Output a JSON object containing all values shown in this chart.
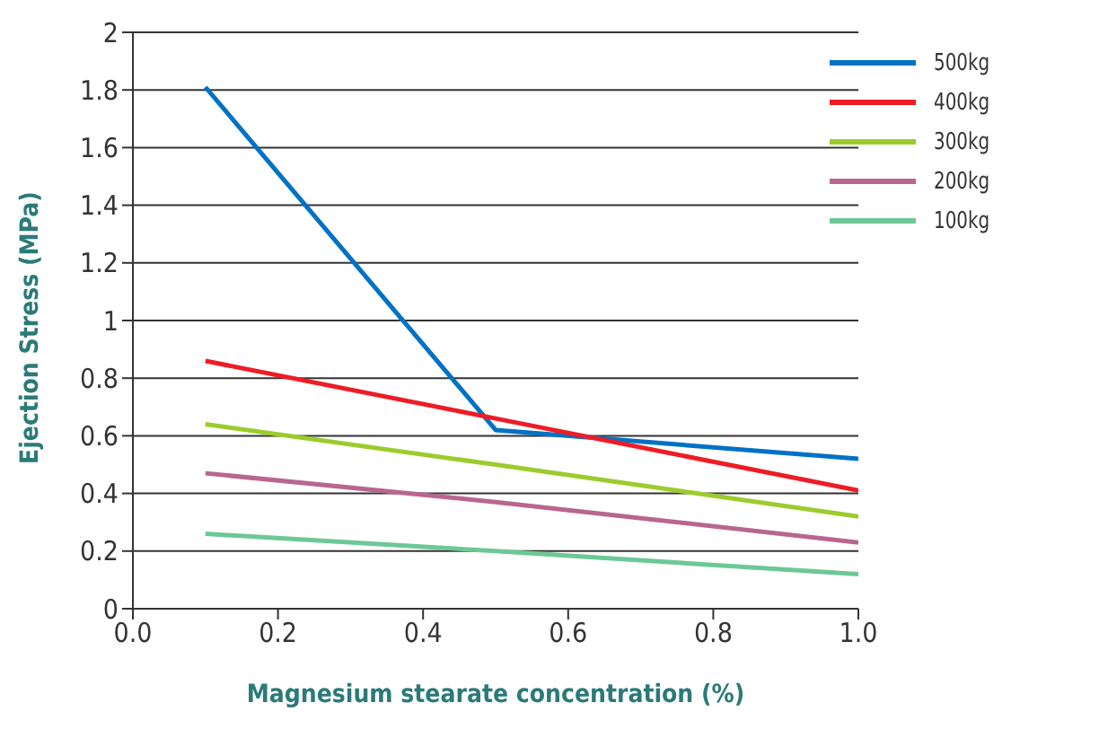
{
  "chart_data": {
    "type": "line",
    "xlabel": "Magnesium stearate concentration (%)",
    "ylabel": "Ejection Stress (MPa)",
    "x": [
      0.1,
      0.5,
      1.0
    ],
    "series": [
      {
        "name": "500kg",
        "color": "#0072c6",
        "values": [
          1.81,
          0.62,
          0.52
        ]
      },
      {
        "name": "400kg",
        "color": "#ee1c25",
        "values": [
          0.86,
          0.66,
          0.41
        ]
      },
      {
        "name": "300kg",
        "color": "#9ccc2c",
        "values": [
          0.64,
          0.5,
          0.32
        ]
      },
      {
        "name": "200kg",
        "color": "#b8668f",
        "values": [
          0.47,
          0.37,
          0.23
        ]
      },
      {
        "name": "100kg",
        "color": "#6cc896",
        "values": [
          0.26,
          0.2,
          0.12
        ]
      }
    ],
    "xlim": [
      0,
      1
    ],
    "xticks": [
      {
        "value": 0,
        "label": "0.0"
      },
      {
        "value": 0.2,
        "label": "0.2"
      },
      {
        "value": 0.4,
        "label": "0.4"
      },
      {
        "value": 0.6,
        "label": "0.6"
      },
      {
        "value": 0.8,
        "label": "0.8"
      },
      {
        "value": 1,
        "label": "1.0"
      }
    ],
    "ylim": [
      0,
      2
    ],
    "yticks": [
      0,
      0.2,
      0.4,
      0.6,
      0.8,
      1,
      1.2,
      1.4,
      1.6,
      1.8,
      2
    ],
    "grid": "y",
    "legend": "top right",
    "marker": "none",
    "line_style": "solid"
  }
}
